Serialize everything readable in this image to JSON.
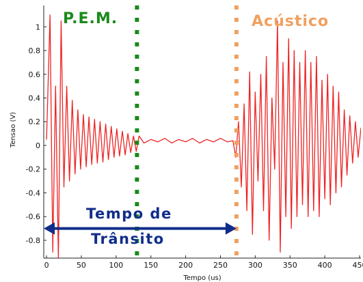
{
  "chart_data": {
    "type": "line",
    "xlabel": "Tempo (us)",
    "ylabel": "Tensao (V)",
    "xlim": [
      -4,
      452
    ],
    "ylim": [
      -0.95,
      1.18
    ],
    "x_ticks": [
      0,
      50,
      100,
      150,
      200,
      250,
      300,
      350,
      400,
      450
    ],
    "x_tick_labels": [
      "0",
      "50",
      "100",
      "150",
      "200",
      "250",
      "300",
      "350",
      "400",
      "450"
    ],
    "y_ticks": [
      1,
      0.8,
      0.6,
      0.4,
      0.2,
      0,
      -0.2,
      -0.4,
      -0.6,
      -0.8
    ],
    "y_tick_labels": [
      "1",
      "0.8",
      "0.6",
      "0.4",
      "0.2",
      "0",
      "-0.2",
      "-0.4",
      "-0.6",
      "-0.8"
    ],
    "grid": false,
    "series_color": "#ee2222",
    "series": [
      {
        "values_note_free": true,
        "x": [
          0,
          5,
          9,
          13,
          17,
          21,
          25,
          29,
          33,
          37,
          41,
          45,
          49,
          53,
          57,
          61,
          65,
          69,
          73,
          77,
          81,
          85,
          89,
          93,
          97,
          101,
          105,
          109,
          113,
          117,
          121,
          125,
          129,
          133,
          140,
          150,
          160,
          170,
          180,
          190,
          200,
          210,
          220,
          230,
          240,
          250,
          260,
          268,
          272,
          276,
          280,
          284,
          288,
          292,
          296,
          300,
          304,
          308,
          312,
          316,
          320,
          324,
          328,
          332,
          336,
          340,
          344,
          348,
          352,
          356,
          360,
          364,
          368,
          372,
          376,
          380,
          384,
          388,
          392,
          396,
          400,
          404,
          408,
          412,
          416,
          420,
          424,
          428,
          432,
          436,
          440,
          444,
          448,
          452
        ],
        "y": [
          0.05,
          1.1,
          -0.9,
          0.5,
          -0.95,
          1.05,
          -0.35,
          0.5,
          -0.3,
          0.38,
          -0.24,
          0.3,
          -0.2,
          0.26,
          -0.18,
          0.24,
          -0.16,
          0.22,
          -0.15,
          0.2,
          -0.14,
          0.18,
          -0.12,
          0.16,
          -0.1,
          0.14,
          -0.09,
          0.12,
          -0.08,
          0.1,
          -0.06,
          0.08,
          -0.05,
          0.08,
          0.02,
          0.05,
          0.03,
          0.06,
          0.02,
          0.05,
          0.03,
          0.06,
          0.02,
          0.05,
          0.03,
          0.06,
          0.03,
          0.04,
          -0.1,
          0.2,
          -0.35,
          0.35,
          -0.55,
          0.62,
          -0.75,
          0.45,
          -0.3,
          0.6,
          -0.55,
          0.75,
          -0.8,
          0.4,
          -0.2,
          1.05,
          -0.9,
          0.7,
          -0.6,
          0.9,
          -0.7,
          0.8,
          -0.6,
          0.7,
          -0.5,
          0.8,
          -0.6,
          0.7,
          -0.55,
          0.75,
          -0.6,
          0.55,
          -0.45,
          0.6,
          -0.5,
          0.5,
          -0.4,
          0.45,
          -0.35,
          0.3,
          -0.25,
          0.25,
          -0.15,
          0.2,
          -0.1,
          0.15
        ]
      }
    ],
    "annotations": {
      "pem_label": "P.E.M.",
      "pem_x": 130,
      "pem_color": "#1a8a1a",
      "acoustic_label": "Acústico",
      "acoustic_x": 273,
      "acoustic_color": "#f0a060",
      "transit_line1": "Tempo de",
      "transit_line2": "Trânsito",
      "transit_color": "#102d8a",
      "transit_y": -0.7,
      "transit_from": -4,
      "transit_to": 273
    }
  }
}
